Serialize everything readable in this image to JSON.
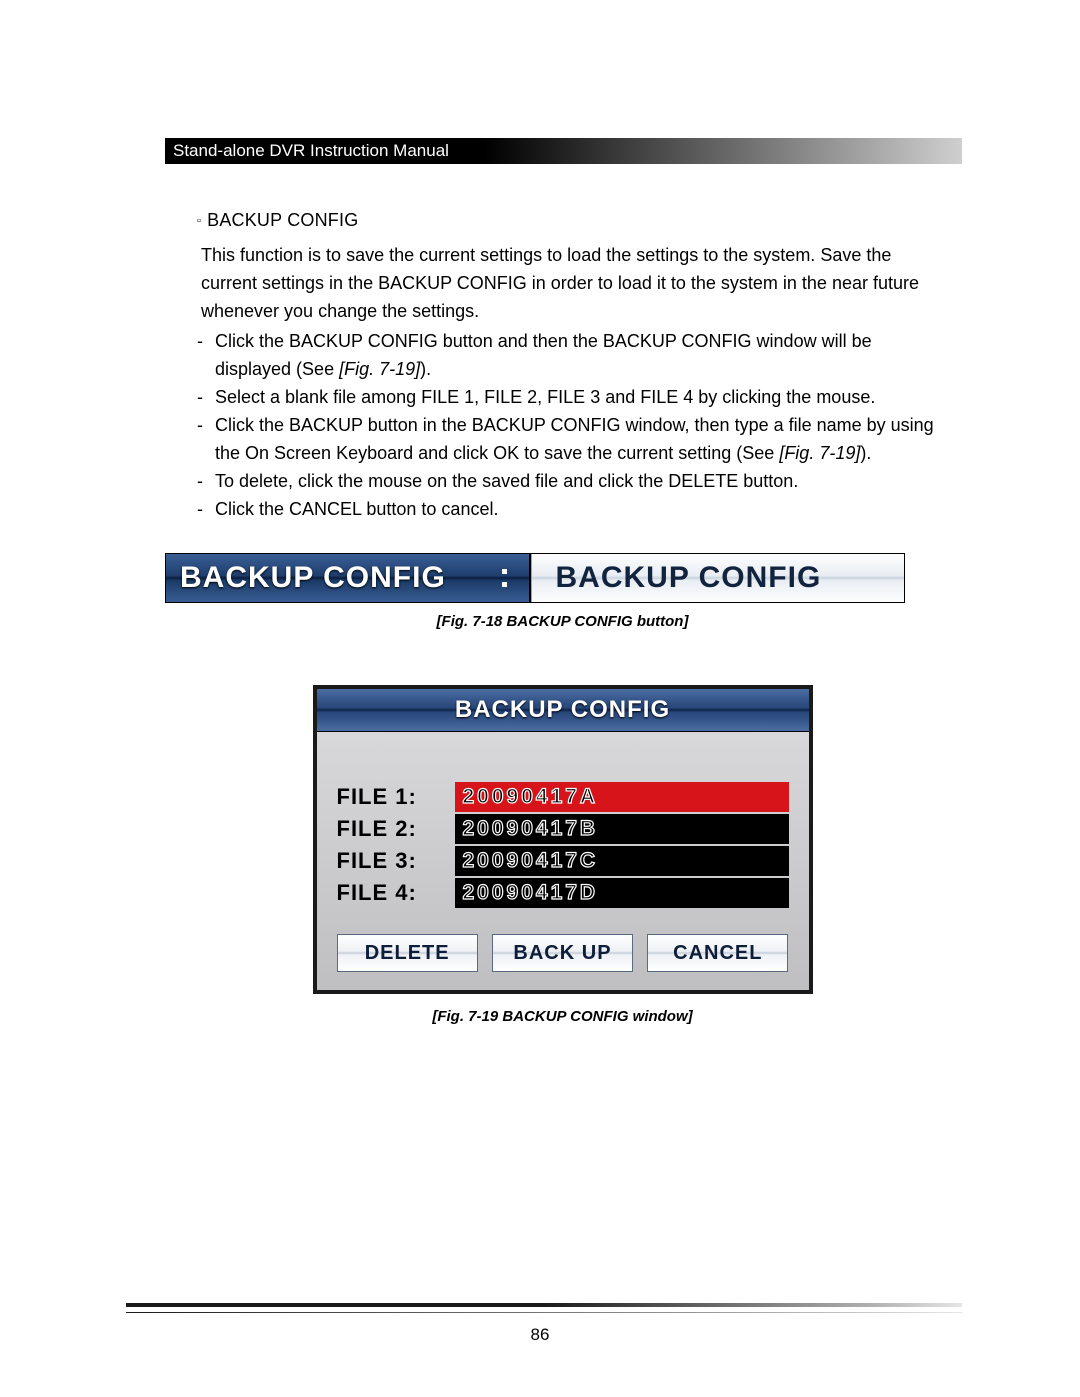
{
  "header": {
    "title": "Stand-alone DVR Instruction Manual"
  },
  "section": {
    "title": "BACKUP CONFIG",
    "paragraph": "This function is to save the current settings to load the settings to the system. Save the current settings in the BACKUP CONFIG in order to load it to the system in the near future whenever you change the settings.",
    "bullets": {
      "b1_a": "Click the BACKUP CONFIG button and then the BACKUP CONFIG window will be displayed (See ",
      "b1_fig": "[Fig. 7-19]",
      "b1_c": ").",
      "b2": "Select a blank file among FILE 1, FILE 2, FILE 3 and FILE 4 by clicking the mouse.",
      "b3_a": "Click the BACKUP button in the BACKUP CONFIG window, then type a file name by using the On Screen Keyboard and click OK to save the current setting (See ",
      "b3_fig": "[Fig. 7-19]",
      "b3_c": ").",
      "b4": "To delete, click the mouse on the saved file and click the DELETE button.",
      "b5": "Click the CANCEL button to cancel."
    }
  },
  "fig18": {
    "left_label": "BACKUP CONFIG",
    "right_label": "BACKUP CONFIG",
    "caption": "[Fig. 7-18 BACKUP CONFIG button]",
    "colors": {
      "blue_grad_top": "#3a5f95",
      "blue_grad_bottom": "#0a1d3e",
      "light_grad_top": "#fdfdfd",
      "light_grad_bottom": "#c9d2dc"
    }
  },
  "fig19": {
    "title": "BACKUP CONFIG",
    "files": [
      {
        "label": "FILE  1:",
        "value": "20090417A",
        "selected": true
      },
      {
        "label": "FILE  2:",
        "value": "20090417B",
        "selected": false
      },
      {
        "label": "FILE  3:",
        "value": "20090417C",
        "selected": false
      },
      {
        "label": "FILE  4:",
        "value": "20090417D",
        "selected": false
      }
    ],
    "buttons": {
      "delete": "DELETE",
      "backup": "BACK UP",
      "cancel": "CANCEL"
    },
    "caption": "[Fig. 7-19 BACKUP CONFIG window]",
    "colors": {
      "selected_bg": "#d6141a",
      "row_bg": "#000000",
      "window_bg": "#bfbfc1",
      "title_grad_top": "#4a6da1",
      "title_grad_mid": "#0e2348"
    }
  },
  "page_number": "86"
}
